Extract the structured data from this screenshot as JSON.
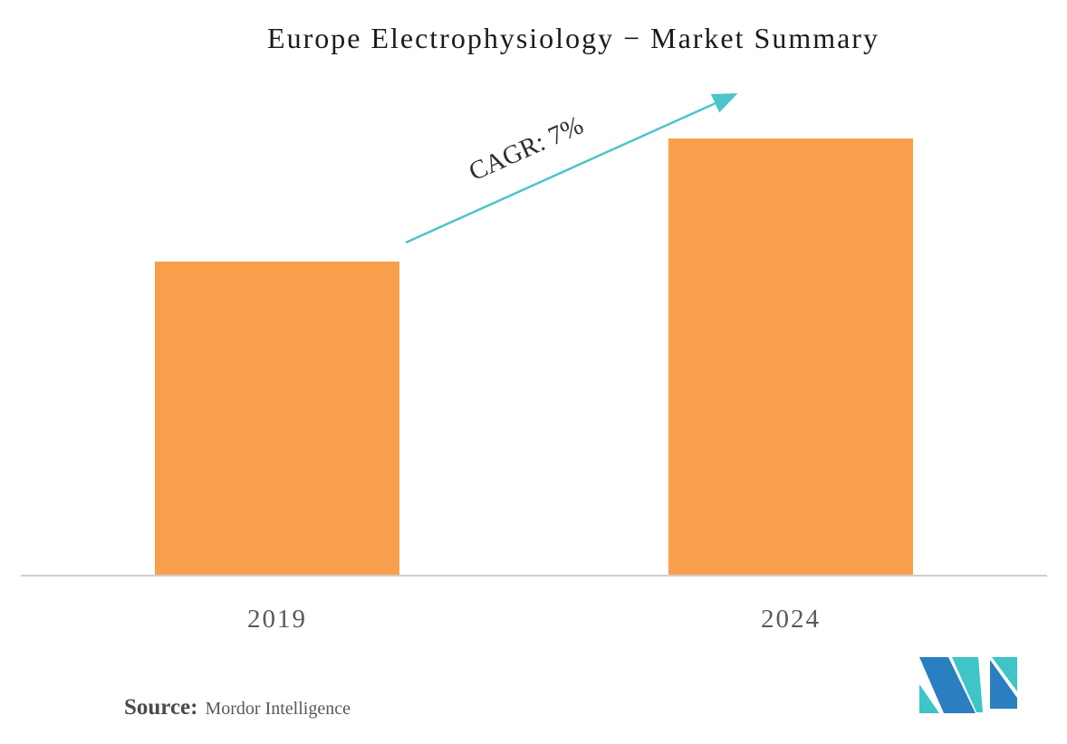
{
  "chart_data": {
    "type": "bar",
    "title": "Europe Electrophysiology − Market Summary",
    "categories": [
      "2019",
      "2024"
    ],
    "values": [
      348,
      484
    ],
    "values_unit": "relative bar heights in px; chart shows no numeric value axis",
    "annotation": "CAGR: 7%",
    "bar_color": "#f99f4c",
    "xlabel": "",
    "ylabel": "",
    "grid": false,
    "legend": false,
    "axis_line_color": "#cfcfcf"
  },
  "source": {
    "label": "Source:",
    "name": "Mordor Intelligence"
  },
  "branding": {
    "logo_name": "mordor-intelligence-m-logo",
    "logo_blue": "#2b7fc0",
    "logo_teal": "#3fc4c7"
  },
  "colors": {
    "background": "#ffffff",
    "title_text": "#1b1b1b",
    "tick_text": "#595959",
    "arrow": "#4cc4c8",
    "annotation_text": "#2e2e2e"
  }
}
